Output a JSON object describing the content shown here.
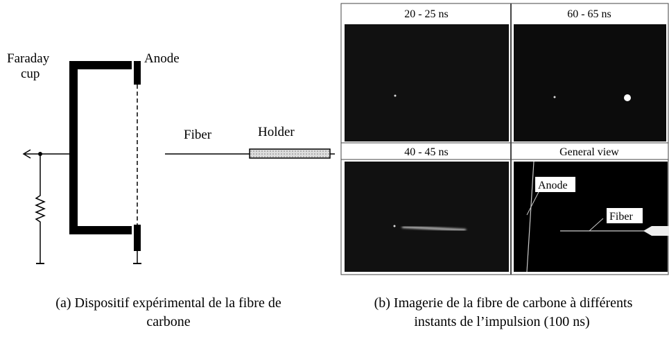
{
  "figure_a": {
    "labels": {
      "faraday": [
        "Faraday",
        "cup"
      ],
      "anode": "Anode",
      "fiber": "Fiber",
      "holder": "Holder"
    },
    "caption": [
      "(a) Dispositif expérimental de la fibre de",
      "carbone"
    ]
  },
  "figure_b": {
    "panels": [
      "20 - 25 ns",
      "60 - 65 ns",
      "40 - 45 ns",
      "General view"
    ],
    "inner_labels": {
      "anode": "Anode",
      "fiber": "Fiber"
    },
    "caption": [
      "(b) Imagerie de la fibre de carbone à différents",
      "instants de l’impulsion (100 ns)"
    ]
  }
}
